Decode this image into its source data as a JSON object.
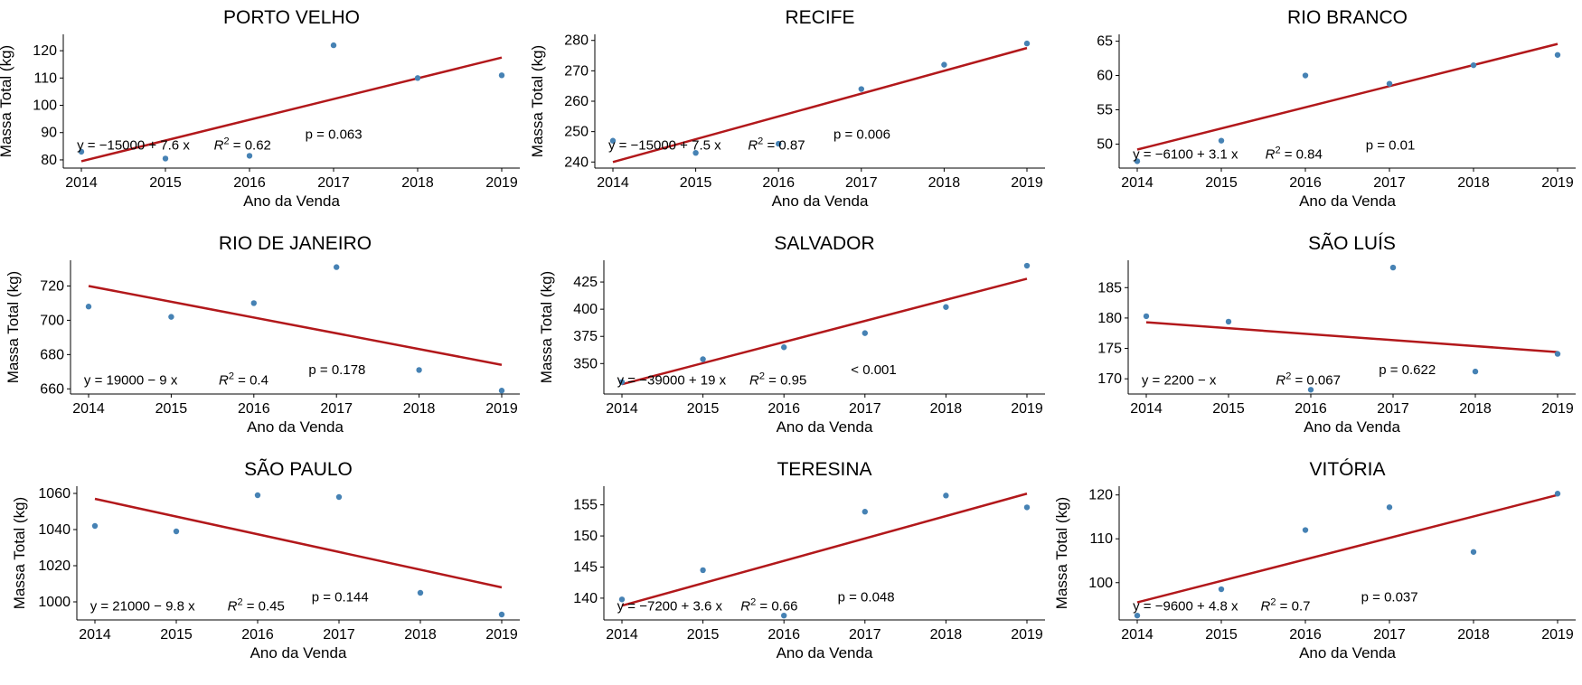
{
  "chart_data": [
    {
      "type": "scatter",
      "title": "PORTO VELHO",
      "xlabel": "Ano da Venda",
      "ylabel": "Massa Total (kg)",
      "x": [
        2014,
        2015,
        2016,
        2017,
        2018,
        2019
      ],
      "y": [
        83,
        80.5,
        81.5,
        122,
        110,
        111
      ],
      "ylim": [
        77,
        126
      ],
      "yticks": [
        80,
        90,
        100,
        110,
        120
      ],
      "fit": {
        "y_start": 79.5,
        "y_end": 117.5
      },
      "equation": "y = −15000 + 7.6 x",
      "r2": "= 0.62",
      "pvalue": "p = 0.063",
      "colors": {
        "points": "#4682b4",
        "line": "#b2181b"
      }
    },
    {
      "type": "scatter",
      "title": "RECIFE",
      "xlabel": "Ano da Venda",
      "ylabel": "Massa Total (kg)",
      "x": [
        2014,
        2015,
        2016,
        2017,
        2018,
        2019
      ],
      "y": [
        247,
        243,
        246,
        264,
        272,
        279
      ],
      "ylim": [
        238,
        282
      ],
      "yticks": [
        240,
        250,
        260,
        270,
        280
      ],
      "fit": {
        "y_start": 240,
        "y_end": 277.5
      },
      "equation": "y = −15000 + 7.5 x",
      "r2": "= 0.87",
      "pvalue": "p = 0.006",
      "colors": {
        "points": "#4682b4",
        "line": "#b2181b"
      }
    },
    {
      "type": "scatter",
      "title": "RIO BRANCO",
      "xlabel": "Ano da Venda",
      "ylabel": "",
      "x": [
        2014,
        2015,
        2016,
        2017,
        2018,
        2019
      ],
      "y": [
        47.5,
        50.5,
        60,
        58.8,
        61.5,
        63
      ],
      "ylim": [
        46.5,
        66
      ],
      "yticks": [
        50,
        55,
        60,
        65
      ],
      "fit": {
        "y_start": 49.2,
        "y_end": 64.6
      },
      "equation": "y = −6100 + 3.1 x",
      "r2": "= 0.84",
      "pvalue": "p = 0.01",
      "colors": {
        "points": "#4682b4",
        "line": "#b2181b"
      }
    },
    {
      "type": "scatter",
      "title": "RIO DE JANEIRO",
      "xlabel": "Ano da Venda",
      "ylabel": "Massa Total (kg)",
      "x": [
        2014,
        2015,
        2016,
        2017,
        2018,
        2019
      ],
      "y": [
        708,
        702,
        710,
        731,
        671,
        659
      ],
      "ylim": [
        657,
        735
      ],
      "yticks": [
        660,
        680,
        700,
        720
      ],
      "fit": {
        "y_start": 720,
        "y_end": 674
      },
      "equation": "y = 19000 − 9 x",
      "r2": "= 0.4",
      "pvalue": "p = 0.178",
      "colors": {
        "points": "#4682b4",
        "line": "#b2181b"
      }
    },
    {
      "type": "scatter",
      "title": "SALVADOR",
      "xlabel": "Ano da Venda",
      "ylabel": "Massa Total (kg)",
      "x": [
        2014,
        2015,
        2016,
        2017,
        2018,
        2019
      ],
      "y": [
        333,
        354,
        365,
        378,
        402,
        440
      ],
      "ylim": [
        322,
        445
      ],
      "yticks": [
        350,
        375,
        400,
        425
      ],
      "fit": {
        "y_start": 331,
        "y_end": 428
      },
      "equation": "y = −39000 + 19 x",
      "r2": "= 0.95",
      "pvalue": "< 0.001",
      "colors": {
        "points": "#4682b4",
        "line": "#b2181b"
      }
    },
    {
      "type": "scatter",
      "title": "SÃO LUÍS",
      "xlabel": "Ano da Venda",
      "ylabel": "",
      "x": [
        2014,
        2015,
        2016,
        2017,
        2018,
        2019
      ],
      "y": [
        180.3,
        179.4,
        168.2,
        188.3,
        171.2,
        174.1
      ],
      "ylim": [
        167.5,
        189.5
      ],
      "yticks": [
        170,
        175,
        180,
        185
      ],
      "fit": {
        "y_start": 179.3,
        "y_end": 174.4
      },
      "equation": "y = 2200 −  x",
      "r2": "= 0.067",
      "pvalue": "p = 0.622",
      "colors": {
        "points": "#4682b4",
        "line": "#b2181b"
      }
    },
    {
      "type": "scatter",
      "title": "SÃO PAULO",
      "xlabel": "Ano da Venda",
      "ylabel": "Massa Total (kg)",
      "x": [
        2014,
        2015,
        2016,
        2017,
        2018,
        2019
      ],
      "y": [
        1042,
        1039,
        1059,
        1058,
        1005,
        993
      ],
      "ylim": [
        990,
        1064
      ],
      "yticks": [
        1000,
        1020,
        1040,
        1060
      ],
      "fit": {
        "y_start": 1057,
        "y_end": 1008
      },
      "equation": "y = 21000 − 9.8 x",
      "r2": "= 0.45",
      "pvalue": "p = 0.144",
      "colors": {
        "points": "#4682b4",
        "line": "#b2181b"
      }
    },
    {
      "type": "scatter",
      "title": "TERESINA",
      "xlabel": "Ano da Venda",
      "ylabel": "",
      "x": [
        2014,
        2015,
        2016,
        2017,
        2018,
        2019
      ],
      "y": [
        139.8,
        144.5,
        137.2,
        153.9,
        156.5,
        154.6
      ],
      "ylim": [
        136.5,
        158
      ],
      "yticks": [
        140,
        145,
        150,
        155
      ],
      "fit": {
        "y_start": 138.8,
        "y_end": 156.8
      },
      "equation": "y = −7200 + 3.6 x",
      "r2": "= 0.66",
      "pvalue": "p = 0.048",
      "colors": {
        "points": "#4682b4",
        "line": "#b2181b"
      }
    },
    {
      "type": "scatter",
      "title": "VITÓRIA",
      "xlabel": "Ano da Venda",
      "ylabel": "Massa Total (kg)",
      "x": [
        2014,
        2015,
        2016,
        2017,
        2018,
        2019
      ],
      "y": [
        92.5,
        98.5,
        112,
        117.2,
        107,
        120.3
      ],
      "ylim": [
        91.5,
        122
      ],
      "yticks": [
        100,
        110,
        120
      ],
      "fit": {
        "y_start": 95.5,
        "y_end": 120
      },
      "equation": "y = −9600 + 4.8 x",
      "r2": "= 0.7",
      "pvalue": "p = 0.037",
      "colors": {
        "points": "#4682b4",
        "line": "#b2181b"
      }
    }
  ]
}
